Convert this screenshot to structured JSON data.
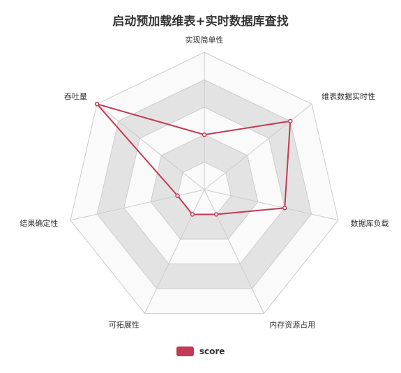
{
  "chart_data": {
    "type": "radar",
    "title": "启动预加载维表+实时数据库查找",
    "indicators": [
      "实现简单性",
      "维表数据实时性",
      "数据库负载",
      "内存资源占用",
      "可拓展性",
      "结果确定性",
      "吞吐量"
    ],
    "max": 5,
    "split_number": 5,
    "series": [
      {
        "name": "score",
        "values": [
          2,
          4,
          3,
          1,
          1,
          1,
          5
        ]
      }
    ],
    "legend_position": "bottom-center",
    "colors": {
      "series": "#c23a56",
      "grid_line": "#cccccc",
      "band_shaded": "#e3e3e3",
      "band_light": "#fafafa",
      "label_text": "#333333"
    }
  }
}
